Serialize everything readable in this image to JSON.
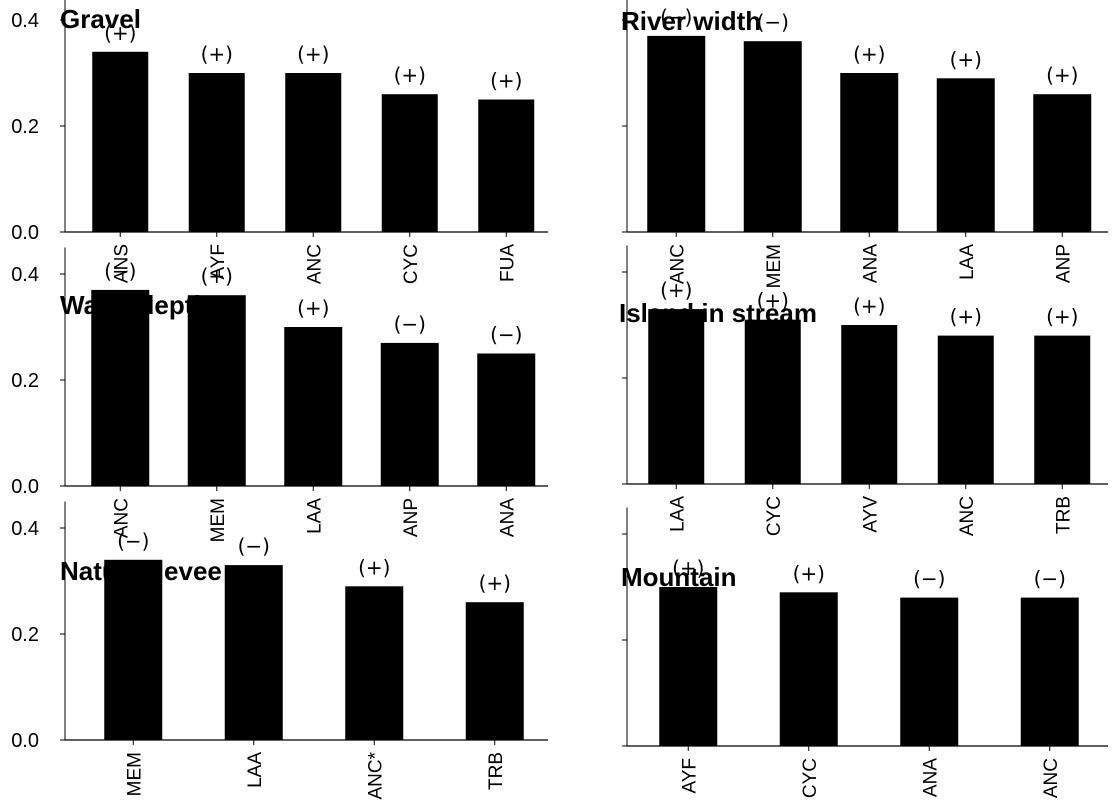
{
  "chart_data": [
    {
      "type": "bar",
      "title": "Gravel",
      "categories": [
        "ANS",
        "AYF",
        "ANC",
        "CYC",
        "FUA"
      ],
      "values": [
        0.34,
        0.3,
        0.3,
        0.26,
        0.25
      ],
      "signs": [
        "(+)",
        "(+)",
        "(+)",
        "(+)",
        "(+)"
      ],
      "ylim": [
        0,
        0.45
      ],
      "yticks": [
        "0.0",
        "0.2",
        "0.4"
      ],
      "ytick_values": [
        0,
        0.2,
        0.4
      ],
      "show_ytick_labels": true
    },
    {
      "type": "bar",
      "title": "River width",
      "categories": [
        "ANC",
        "MEM",
        "ANA",
        "LAA",
        "ANP"
      ],
      "values": [
        0.37,
        0.36,
        0.3,
        0.29,
        0.26
      ],
      "signs": [
        "(−)",
        "(−)",
        "(+)",
        "(+)",
        "(+)"
      ],
      "ylim": [
        0,
        0.45
      ],
      "yticks": [],
      "ytick_values": [
        0,
        0.2,
        0.4
      ],
      "show_ytick_labels": false
    },
    {
      "type": "bar",
      "title": "Water depth",
      "categories": [
        "ANC",
        "MEM",
        "LAA",
        "ANP",
        "ANA"
      ],
      "values": [
        0.37,
        0.36,
        0.3,
        0.27,
        0.25
      ],
      "signs": [
        "(−)",
        "(+)",
        "(+)",
        "(−)",
        "(−)"
      ],
      "ylim": [
        0,
        0.45
      ],
      "yticks": [
        "0.0",
        "0.2",
        "0.4"
      ],
      "ytick_values": [
        0,
        0.2,
        0.4
      ],
      "show_ytick_labels": true
    },
    {
      "type": "bar",
      "title": "Island in stream",
      "categories": [
        "LAA",
        "CYC",
        "AYV",
        "ANC",
        "TRB"
      ],
      "values": [
        0.33,
        0.31,
        0.3,
        0.28,
        0.28
      ],
      "signs": [
        "(+)",
        "(+)",
        "(+)",
        "(+)",
        "(+)"
      ],
      "ylim": [
        0,
        0.45
      ],
      "yticks": [],
      "ytick_values": [
        0,
        0.2,
        0.4
      ],
      "show_ytick_labels": false
    },
    {
      "type": "bar",
      "title": "Natural levee",
      "categories": [
        "MEM",
        "LAA",
        "ANC*",
        "TRB"
      ],
      "values": [
        0.34,
        0.33,
        0.29,
        0.26
      ],
      "signs": [
        "(−)",
        "(−)",
        "(+)",
        "(+)"
      ],
      "ylim": [
        0,
        0.45
      ],
      "yticks": [
        "0.0",
        "0.2",
        "0.4"
      ],
      "ytick_values": [
        0,
        0.2,
        0.4
      ],
      "show_ytick_labels": true
    },
    {
      "type": "bar",
      "title": "Mountain",
      "categories": [
        "AYF",
        "CYC",
        "ANA",
        "ANC"
      ],
      "values": [
        0.3,
        0.29,
        0.28,
        0.28
      ],
      "signs": [
        "(+)",
        "(+)",
        "(−)",
        "(−)"
      ],
      "ylim": [
        0,
        0.45
      ],
      "yticks": [],
      "ytick_values": [
        0,
        0.2,
        0.4
      ],
      "show_ytick_labels": false
    }
  ]
}
